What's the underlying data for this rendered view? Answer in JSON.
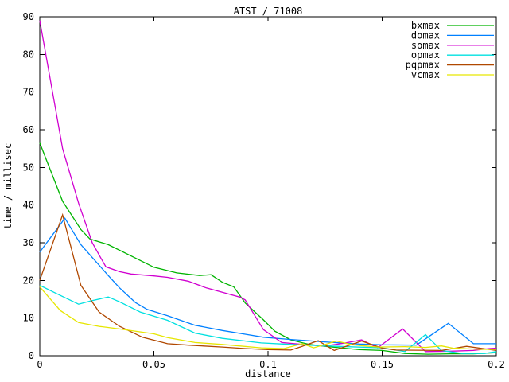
{
  "title": "ATST / 71008",
  "chart_data": {
    "type": "line",
    "title": "ATST / 71008",
    "xlabel": "distance",
    "ylabel": "time / millisec",
    "xlim": [
      0,
      0.2
    ],
    "ylim": [
      0,
      90
    ],
    "grid": false,
    "legend_position": "top-right-inside",
    "x_ticks": [
      {
        "v": 0,
        "label": "0"
      },
      {
        "v": 0.05,
        "label": "0.05"
      },
      {
        "v": 0.1,
        "label": "0.1"
      },
      {
        "v": 0.15,
        "label": "0.15"
      },
      {
        "v": 0.2,
        "label": "0.2"
      }
    ],
    "y_ticks": [
      {
        "v": 0,
        "label": "0"
      },
      {
        "v": 10,
        "label": "10"
      },
      {
        "v": 20,
        "label": "20"
      },
      {
        "v": 30,
        "label": "30"
      },
      {
        "v": 40,
        "label": "40"
      },
      {
        "v": 50,
        "label": "50"
      },
      {
        "v": 60,
        "label": "60"
      },
      {
        "v": 70,
        "label": "70"
      },
      {
        "v": 80,
        "label": "80"
      },
      {
        "v": 90,
        "label": "90"
      }
    ],
    "axis_color": "#000000",
    "series": [
      {
        "name": "bxmax",
        "color": "#00b400",
        "points": [
          [
            0,
            56.5
          ],
          [
            0.01,
            41
          ],
          [
            0.018,
            33.5
          ],
          [
            0.022,
            31
          ],
          [
            0.03,
            29.5
          ],
          [
            0.04,
            26.5
          ],
          [
            0.05,
            23.5
          ],
          [
            0.06,
            22
          ],
          [
            0.07,
            21.3
          ],
          [
            0.075,
            21.5
          ],
          [
            0.08,
            19.5
          ],
          [
            0.085,
            18.3
          ],
          [
            0.09,
            14
          ],
          [
            0.098,
            9.5
          ],
          [
            0.103,
            6.5
          ],
          [
            0.11,
            4.2
          ],
          [
            0.118,
            3
          ],
          [
            0.125,
            2.5
          ],
          [
            0.13,
            2.2
          ],
          [
            0.14,
            1.6
          ],
          [
            0.15,
            1.4
          ],
          [
            0.16,
            0.6
          ],
          [
            0.17,
            0.4
          ],
          [
            0.18,
            0.5
          ],
          [
            0.19,
            0.5
          ],
          [
            0.2,
            0.8
          ]
        ]
      },
      {
        "name": "domax",
        "color": "#0080ff",
        "points": [
          [
            0,
            27.5
          ],
          [
            0.011,
            36.5
          ],
          [
            0.018,
            29.5
          ],
          [
            0.025,
            24.7
          ],
          [
            0.03,
            21.3
          ],
          [
            0.035,
            18
          ],
          [
            0.042,
            14.1
          ],
          [
            0.047,
            12.3
          ],
          [
            0.056,
            10.6
          ],
          [
            0.068,
            8.1
          ],
          [
            0.08,
            6.7
          ],
          [
            0.09,
            5.7
          ],
          [
            0.098,
            4.9
          ],
          [
            0.11,
            4.3
          ],
          [
            0.124,
            3.7
          ],
          [
            0.14,
            3.1
          ],
          [
            0.15,
            2.9
          ],
          [
            0.165,
            2.8
          ],
          [
            0.179,
            8.6
          ],
          [
            0.19,
            3.2
          ],
          [
            0.2,
            3.2
          ]
        ]
      },
      {
        "name": "somax",
        "color": "#d000d0",
        "points": [
          [
            0,
            89
          ],
          [
            0.01,
            55
          ],
          [
            0.017,
            40.5
          ],
          [
            0.023,
            30
          ],
          [
            0.027,
            25.7
          ],
          [
            0.029,
            23.6
          ],
          [
            0.035,
            22.3
          ],
          [
            0.04,
            21.7
          ],
          [
            0.05,
            21.2
          ],
          [
            0.056,
            20.8
          ],
          [
            0.065,
            19.8
          ],
          [
            0.073,
            18
          ],
          [
            0.088,
            15.5
          ],
          [
            0.09,
            14.8
          ],
          [
            0.098,
            6.9
          ],
          [
            0.106,
            3.5
          ],
          [
            0.117,
            2.9
          ],
          [
            0.125,
            2.6
          ],
          [
            0.133,
            3.3
          ],
          [
            0.141,
            4.2
          ],
          [
            0.148,
            2.1
          ],
          [
            0.159,
            7.1
          ],
          [
            0.169,
            1.1
          ],
          [
            0.18,
            1.2
          ],
          [
            0.19,
            1.4
          ],
          [
            0.197,
            1.9
          ],
          [
            0.2,
            2
          ]
        ]
      },
      {
        "name": "opmax",
        "color": "#00e0e0",
        "points": [
          [
            0,
            18.7
          ],
          [
            0.007,
            16.6
          ],
          [
            0.017,
            13.7
          ],
          [
            0.022,
            14.5
          ],
          [
            0.03,
            15.6
          ],
          [
            0.035,
            14.3
          ],
          [
            0.044,
            11.6
          ],
          [
            0.056,
            9.4
          ],
          [
            0.068,
            6
          ],
          [
            0.08,
            4.6
          ],
          [
            0.097,
            3.4
          ],
          [
            0.11,
            3
          ],
          [
            0.13,
            2.5
          ],
          [
            0.15,
            2.1
          ],
          [
            0.16,
            1.1
          ],
          [
            0.169,
            5.6
          ],
          [
            0.176,
            1.4
          ],
          [
            0.185,
            0.6
          ],
          [
            0.195,
            0.6
          ],
          [
            0.2,
            1.1
          ]
        ]
      },
      {
        "name": "pqpmax",
        "color": "#b04800",
        "points": [
          [
            0,
            20
          ],
          [
            0.01,
            37.4
          ],
          [
            0.018,
            18.7
          ],
          [
            0.026,
            11.6
          ],
          [
            0.035,
            7.8
          ],
          [
            0.045,
            4.9
          ],
          [
            0.056,
            3.2
          ],
          [
            0.065,
            2.8
          ],
          [
            0.08,
            2.3
          ],
          [
            0.09,
            1.9
          ],
          [
            0.1,
            1.6
          ],
          [
            0.11,
            1.5
          ],
          [
            0.115,
            2.5
          ],
          [
            0.122,
            4
          ],
          [
            0.129,
            1.4
          ],
          [
            0.141,
            3.9
          ],
          [
            0.15,
            2
          ],
          [
            0.156,
            1.5
          ],
          [
            0.176,
            1.4
          ],
          [
            0.187,
            2.5
          ],
          [
            0.2,
            1.4
          ]
        ]
      },
      {
        "name": "vcmax",
        "color": "#e6e600",
        "points": [
          [
            0,
            18.3
          ],
          [
            0.009,
            12
          ],
          [
            0.017,
            8.8
          ],
          [
            0.026,
            7.8
          ],
          [
            0.035,
            7.1
          ],
          [
            0.05,
            5.8
          ],
          [
            0.056,
            4.8
          ],
          [
            0.068,
            3.5
          ],
          [
            0.08,
            3
          ],
          [
            0.097,
            2.1
          ],
          [
            0.107,
            1.9
          ],
          [
            0.115,
            3.2
          ],
          [
            0.12,
            2.1
          ],
          [
            0.13,
            3.9
          ],
          [
            0.137,
            2.9
          ],
          [
            0.148,
            2.3
          ],
          [
            0.16,
            2.4
          ],
          [
            0.169,
            2.2
          ],
          [
            0.176,
            2.6
          ],
          [
            0.181,
            2
          ],
          [
            0.193,
            1.7
          ],
          [
            0.2,
            1.7
          ]
        ]
      }
    ]
  }
}
